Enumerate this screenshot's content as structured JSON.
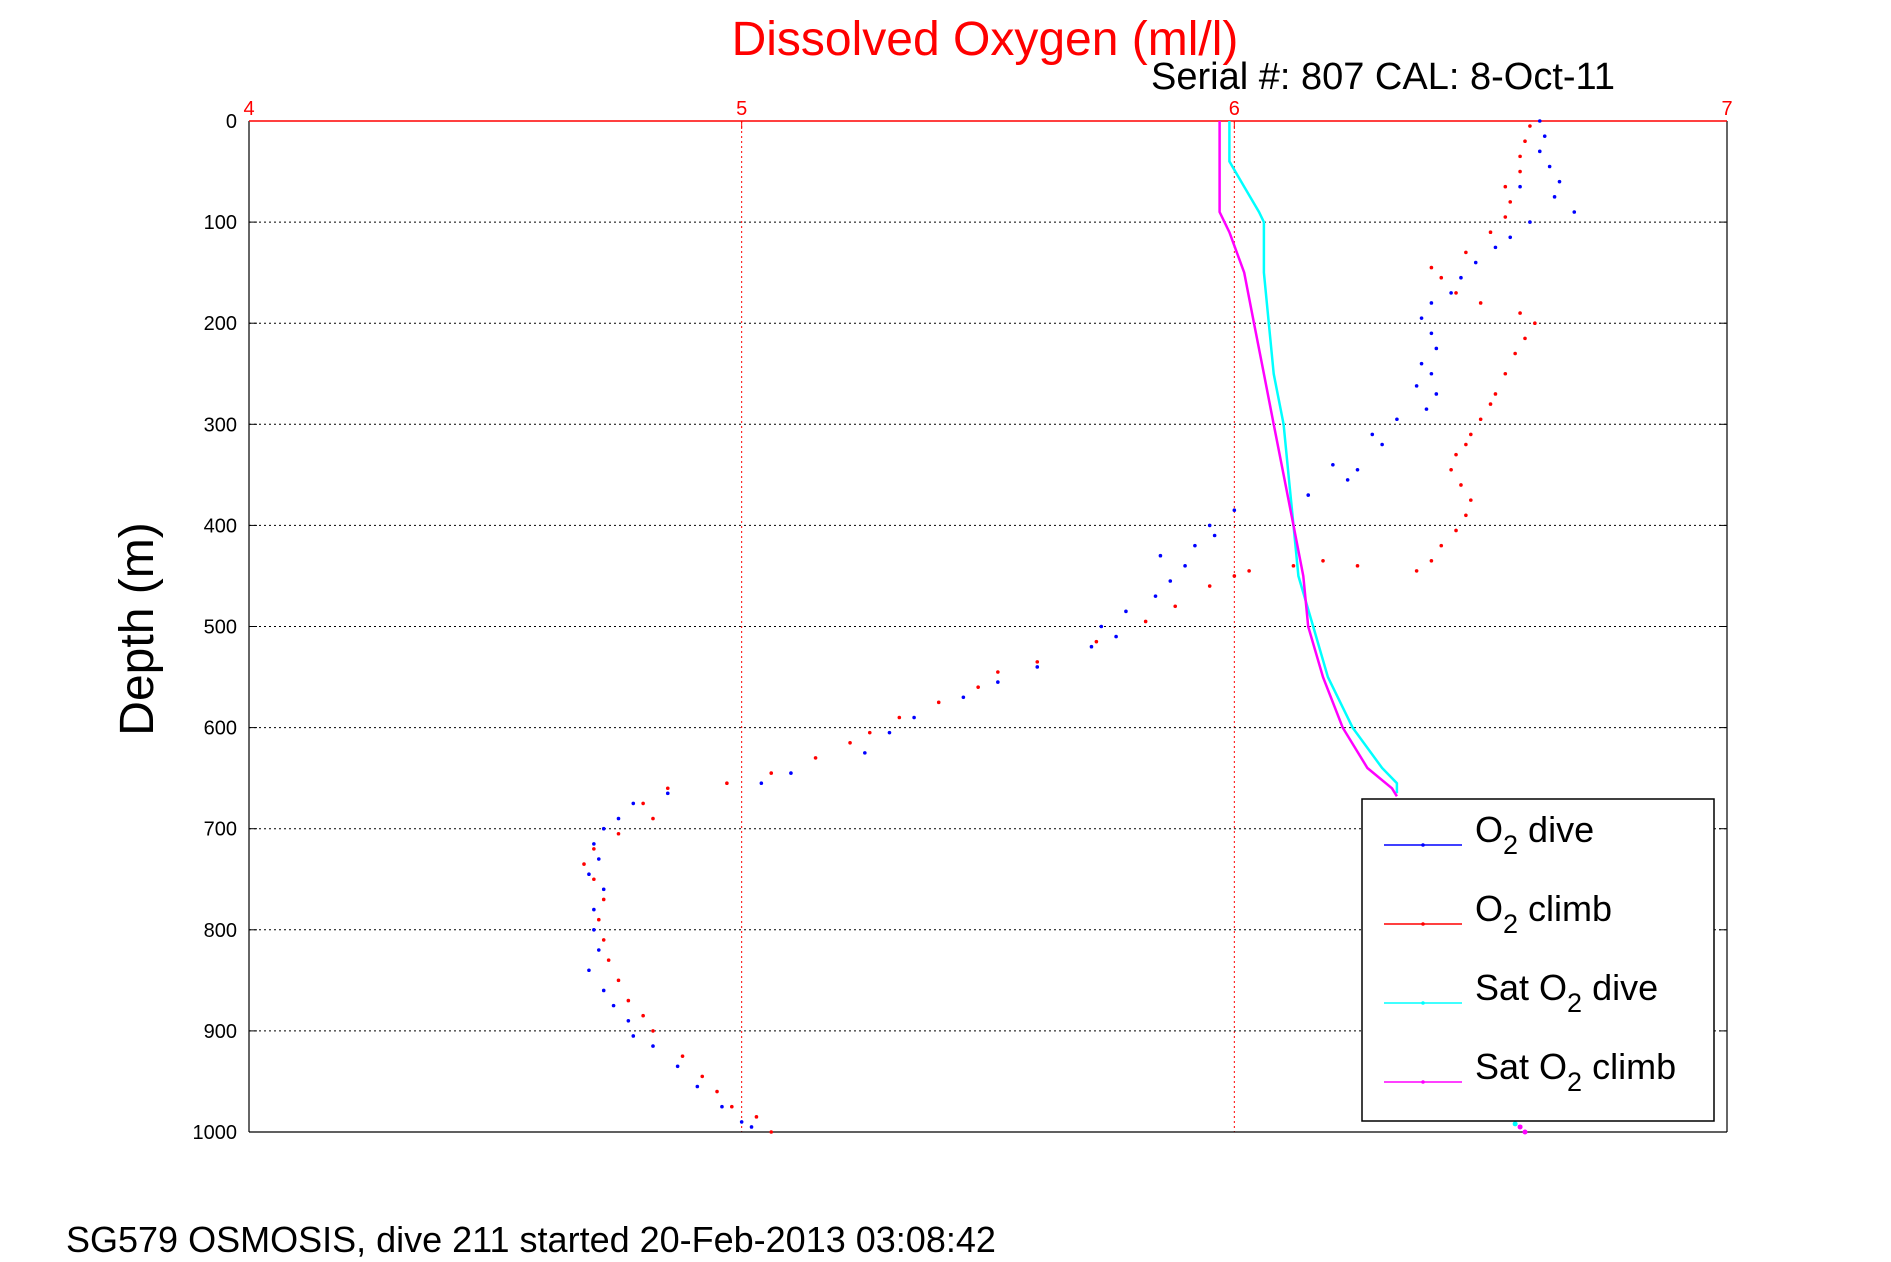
{
  "chart_data": {
    "type": "scatter",
    "title": "Dissolved Oxygen (ml/l)",
    "subtitle": "Serial #: 807  CAL: 8-Oct-11",
    "ylabel": "Depth (m)",
    "footer": "SG579 OSMOSIS, dive 211 started 20-Feb-2013 03:08:42",
    "xlim": [
      4,
      7
    ],
    "ylim": [
      0,
      1000
    ],
    "y_reversed": true,
    "x_axis_position": "top",
    "x_ticks": [
      "4",
      "5",
      "6",
      "7"
    ],
    "y_ticks": [
      "0",
      "100",
      "200",
      "300",
      "400",
      "500",
      "600",
      "700",
      "800",
      "900",
      "1000"
    ],
    "grid": true,
    "legend_position": "bottom-right",
    "colors": {
      "axis_top": "#ff0000",
      "grid_x": "#ff0000",
      "grid_y": "#000000"
    },
    "series": [
      {
        "name": "O2 dive",
        "legend_prefix": "O",
        "legend_sub": "2",
        "legend_suffix": " dive",
        "color": "#0000ff",
        "style": "dots",
        "points": [
          [
            6.62,
            0
          ],
          [
            6.63,
            15
          ],
          [
            6.62,
            30
          ],
          [
            6.64,
            45
          ],
          [
            6.66,
            60
          ],
          [
            6.58,
            65
          ],
          [
            6.65,
            75
          ],
          [
            6.69,
            90
          ],
          [
            6.6,
            100
          ],
          [
            6.56,
            115
          ],
          [
            6.53,
            125
          ],
          [
            6.49,
            140
          ],
          [
            6.46,
            155
          ],
          [
            6.44,
            170
          ],
          [
            6.4,
            180
          ],
          [
            6.38,
            195
          ],
          [
            6.4,
            210
          ],
          [
            6.41,
            225
          ],
          [
            6.38,
            240
          ],
          [
            6.4,
            250
          ],
          [
            6.37,
            262
          ],
          [
            6.41,
            270
          ],
          [
            6.39,
            285
          ],
          [
            6.33,
            295
          ],
          [
            6.28,
            310
          ],
          [
            6.3,
            320
          ],
          [
            6.2,
            340
          ],
          [
            6.25,
            345
          ],
          [
            6.23,
            355
          ],
          [
            6.15,
            370
          ],
          [
            6.0,
            385
          ],
          [
            5.95,
            400
          ],
          [
            5.96,
            410
          ],
          [
            5.92,
            420
          ],
          [
            5.85,
            430
          ],
          [
            5.9,
            440
          ],
          [
            5.87,
            455
          ],
          [
            5.84,
            470
          ],
          [
            5.78,
            485
          ],
          [
            5.73,
            500
          ],
          [
            5.76,
            510
          ],
          [
            5.71,
            520
          ],
          [
            5.6,
            540
          ],
          [
            5.52,
            555
          ],
          [
            5.45,
            570
          ],
          [
            5.35,
            590
          ],
          [
            5.3,
            605
          ],
          [
            5.25,
            625
          ],
          [
            5.1,
            645
          ],
          [
            5.04,
            655
          ],
          [
            4.85,
            665
          ],
          [
            4.78,
            675
          ],
          [
            4.75,
            690
          ],
          [
            4.72,
            700
          ],
          [
            4.7,
            715
          ],
          [
            4.71,
            730
          ],
          [
            4.69,
            745
          ],
          [
            4.72,
            760
          ],
          [
            4.7,
            780
          ],
          [
            4.7,
            800
          ],
          [
            4.71,
            820
          ],
          [
            4.69,
            840
          ],
          [
            4.72,
            860
          ],
          [
            4.74,
            875
          ],
          [
            4.77,
            890
          ],
          [
            4.78,
            905
          ],
          [
            4.82,
            915
          ],
          [
            4.87,
            935
          ],
          [
            4.91,
            955
          ],
          [
            4.96,
            975
          ],
          [
            5.0,
            990
          ],
          [
            5.02,
            995
          ]
        ]
      },
      {
        "name": "O2 climb",
        "legend_prefix": "O",
        "legend_sub": "2",
        "legend_suffix": " climb",
        "color": "#ff0000",
        "style": "dots",
        "points": [
          [
            6.6,
            5
          ],
          [
            6.59,
            20
          ],
          [
            6.58,
            35
          ],
          [
            6.58,
            50
          ],
          [
            6.55,
            65
          ],
          [
            6.56,
            80
          ],
          [
            6.55,
            95
          ],
          [
            6.52,
            110
          ],
          [
            6.47,
            130
          ],
          [
            6.4,
            145
          ],
          [
            6.42,
            155
          ],
          [
            6.45,
            170
          ],
          [
            6.5,
            180
          ],
          [
            6.58,
            190
          ],
          [
            6.61,
            200
          ],
          [
            6.59,
            215
          ],
          [
            6.57,
            230
          ],
          [
            6.55,
            250
          ],
          [
            6.53,
            270
          ],
          [
            6.52,
            280
          ],
          [
            6.5,
            295
          ],
          [
            6.48,
            310
          ],
          [
            6.47,
            320
          ],
          [
            6.45,
            330
          ],
          [
            6.44,
            345
          ],
          [
            6.46,
            360
          ],
          [
            6.48,
            375
          ],
          [
            6.47,
            390
          ],
          [
            6.45,
            405
          ],
          [
            6.42,
            420
          ],
          [
            6.4,
            435
          ],
          [
            6.37,
            445
          ],
          [
            6.25,
            440
          ],
          [
            6.18,
            435
          ],
          [
            6.12,
            440
          ],
          [
            6.03,
            445
          ],
          [
            6.0,
            450
          ],
          [
            5.95,
            460
          ],
          [
            5.88,
            480
          ],
          [
            5.82,
            495
          ],
          [
            5.72,
            515
          ],
          [
            5.6,
            535
          ],
          [
            5.52,
            545
          ],
          [
            5.48,
            560
          ],
          [
            5.4,
            575
          ],
          [
            5.32,
            590
          ],
          [
            5.26,
            605
          ],
          [
            5.22,
            615
          ],
          [
            5.15,
            630
          ],
          [
            5.06,
            645
          ],
          [
            4.97,
            655
          ],
          [
            4.85,
            660
          ],
          [
            4.8,
            675
          ],
          [
            4.82,
            690
          ],
          [
            4.75,
            705
          ],
          [
            4.7,
            720
          ],
          [
            4.68,
            735
          ],
          [
            4.7,
            750
          ],
          [
            4.72,
            770
          ],
          [
            4.71,
            790
          ],
          [
            4.72,
            810
          ],
          [
            4.73,
            830
          ],
          [
            4.75,
            850
          ],
          [
            4.77,
            870
          ],
          [
            4.8,
            885
          ],
          [
            4.82,
            900
          ],
          [
            4.88,
            925
          ],
          [
            4.92,
            945
          ],
          [
            4.95,
            960
          ],
          [
            4.98,
            975
          ],
          [
            5.03,
            985
          ],
          [
            5.06,
            1000
          ]
        ]
      },
      {
        "name": "Sat O2 dive",
        "legend_prefix": "Sat O",
        "legend_sub": "2",
        "legend_suffix": " dive",
        "color": "#00ffff",
        "style": "line",
        "points": [
          [
            5.99,
            0
          ],
          [
            5.99,
            40
          ],
          [
            6.02,
            65
          ],
          [
            6.05,
            90
          ],
          [
            6.06,
            100
          ],
          [
            6.06,
            150
          ],
          [
            6.07,
            200
          ],
          [
            6.08,
            250
          ],
          [
            6.1,
            300
          ],
          [
            6.11,
            350
          ],
          [
            6.12,
            400
          ],
          [
            6.13,
            450
          ],
          [
            6.16,
            500
          ],
          [
            6.19,
            550
          ],
          [
            6.24,
            600
          ],
          [
            6.3,
            640
          ],
          [
            6.33,
            655
          ],
          [
            6.33,
            665
          ]
        ]
      },
      {
        "name": "Sat O2 climb",
        "legend_prefix": "Sat O",
        "legend_sub": "2",
        "legend_suffix": " climb",
        "color": "#ff00ff",
        "style": "line",
        "points": [
          [
            5.97,
            0
          ],
          [
            5.97,
            50
          ],
          [
            5.97,
            90
          ],
          [
            5.99,
            110
          ],
          [
            6.02,
            150
          ],
          [
            6.04,
            200
          ],
          [
            6.06,
            250
          ],
          [
            6.08,
            300
          ],
          [
            6.1,
            350
          ],
          [
            6.12,
            400
          ],
          [
            6.14,
            450
          ],
          [
            6.15,
            500
          ],
          [
            6.18,
            550
          ],
          [
            6.22,
            600
          ],
          [
            6.27,
            640
          ],
          [
            6.32,
            660
          ],
          [
            6.33,
            668
          ]
        ]
      }
    ],
    "trailing_points": [
      {
        "color": "#ff00ff",
        "points": [
          [
            6.58,
            995
          ],
          [
            6.59,
            1000
          ]
        ]
      },
      {
        "color": "#00ffff",
        "points": [
          [
            6.57,
            992
          ]
        ]
      }
    ]
  }
}
